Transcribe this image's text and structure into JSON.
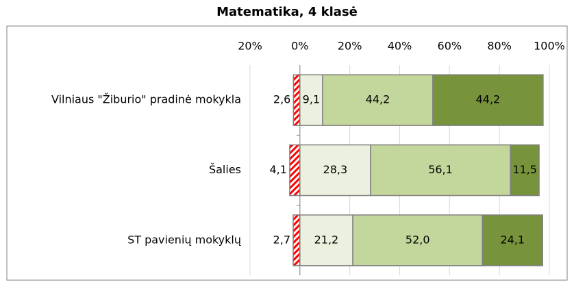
{
  "chart_data": {
    "type": "stacked_barh",
    "title": "Matematika, 4 klasė",
    "categories": [
      "Vilniaus \"Žiburio\" pradinė mokykla",
      "Šalies",
      "ST pavienių mokyklų"
    ],
    "series": [
      {
        "color": "#ff0000",
        "values": [
          -2.6,
          -4.1,
          -2.7
        ],
        "value_labels": [
          "2,6",
          "4,1",
          "2,7"
        ]
      },
      {
        "color": "#ebf1de",
        "values": [
          9.1,
          28.3,
          21.2
        ],
        "value_labels": [
          "9,1",
          "28,3",
          "21,2"
        ]
      },
      {
        "color": "#c3d69b",
        "values": [
          44.2,
          56.1,
          52.0
        ],
        "value_labels": [
          "44,2",
          "56,1",
          "52,0"
        ]
      },
      {
        "color": "#77933c",
        "values": [
          44.2,
          11.5,
          24.1
        ],
        "value_labels": [
          "44,2",
          "11,5",
          "24,1"
        ]
      }
    ],
    "xlim": [
      -20,
      100
    ],
    "xticks": [
      {
        "value": -20,
        "label": "20%"
      },
      {
        "value": 0,
        "label": "0%"
      },
      {
        "value": 20,
        "label": "20%"
      },
      {
        "value": 40,
        "label": "40%"
      },
      {
        "value": 60,
        "label": "60%"
      },
      {
        "value": 80,
        "label": "80%"
      },
      {
        "value": 100,
        "label": "100%"
      }
    ],
    "grid": true
  }
}
